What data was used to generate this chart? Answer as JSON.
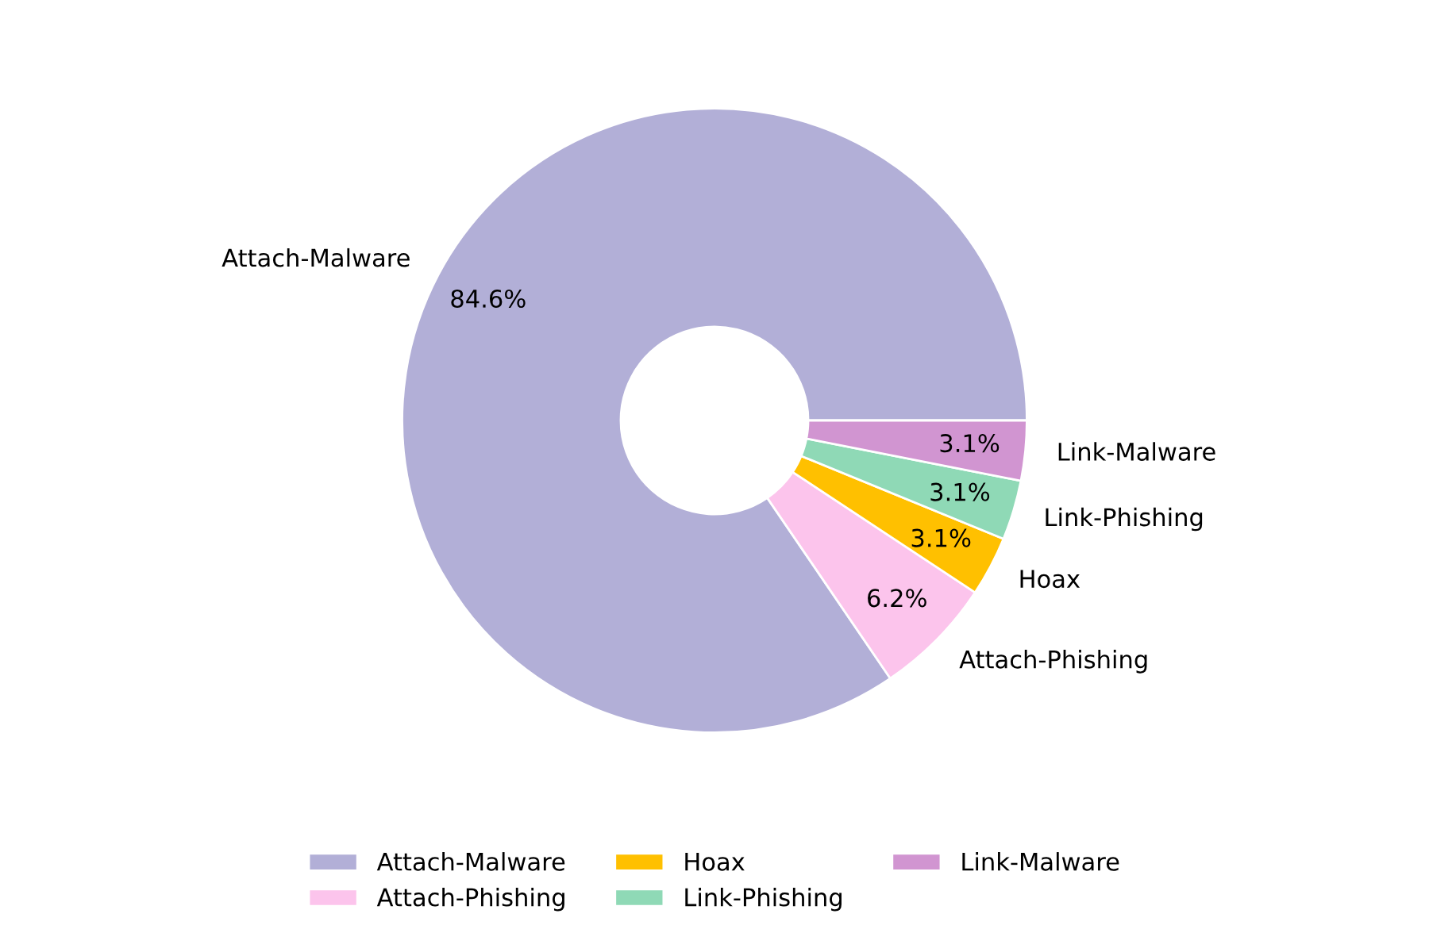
{
  "chart_data": {
    "type": "donut",
    "categories": [
      "Attach-Malware",
      "Attach-Phishing",
      "Hoax",
      "Link-Phishing",
      "Link-Malware"
    ],
    "values": [
      84.6,
      6.2,
      3.1,
      3.1,
      3.1
    ],
    "colors": [
      "#b2afd7",
      "#fcc4ec",
      "#ffc000",
      "#8fd9b6",
      "#d195d1"
    ],
    "value_labels": [
      "84.6%",
      "6.2%",
      "3.1%",
      "3.1%",
      "3.1%"
    ],
    "legend": "bottom"
  }
}
